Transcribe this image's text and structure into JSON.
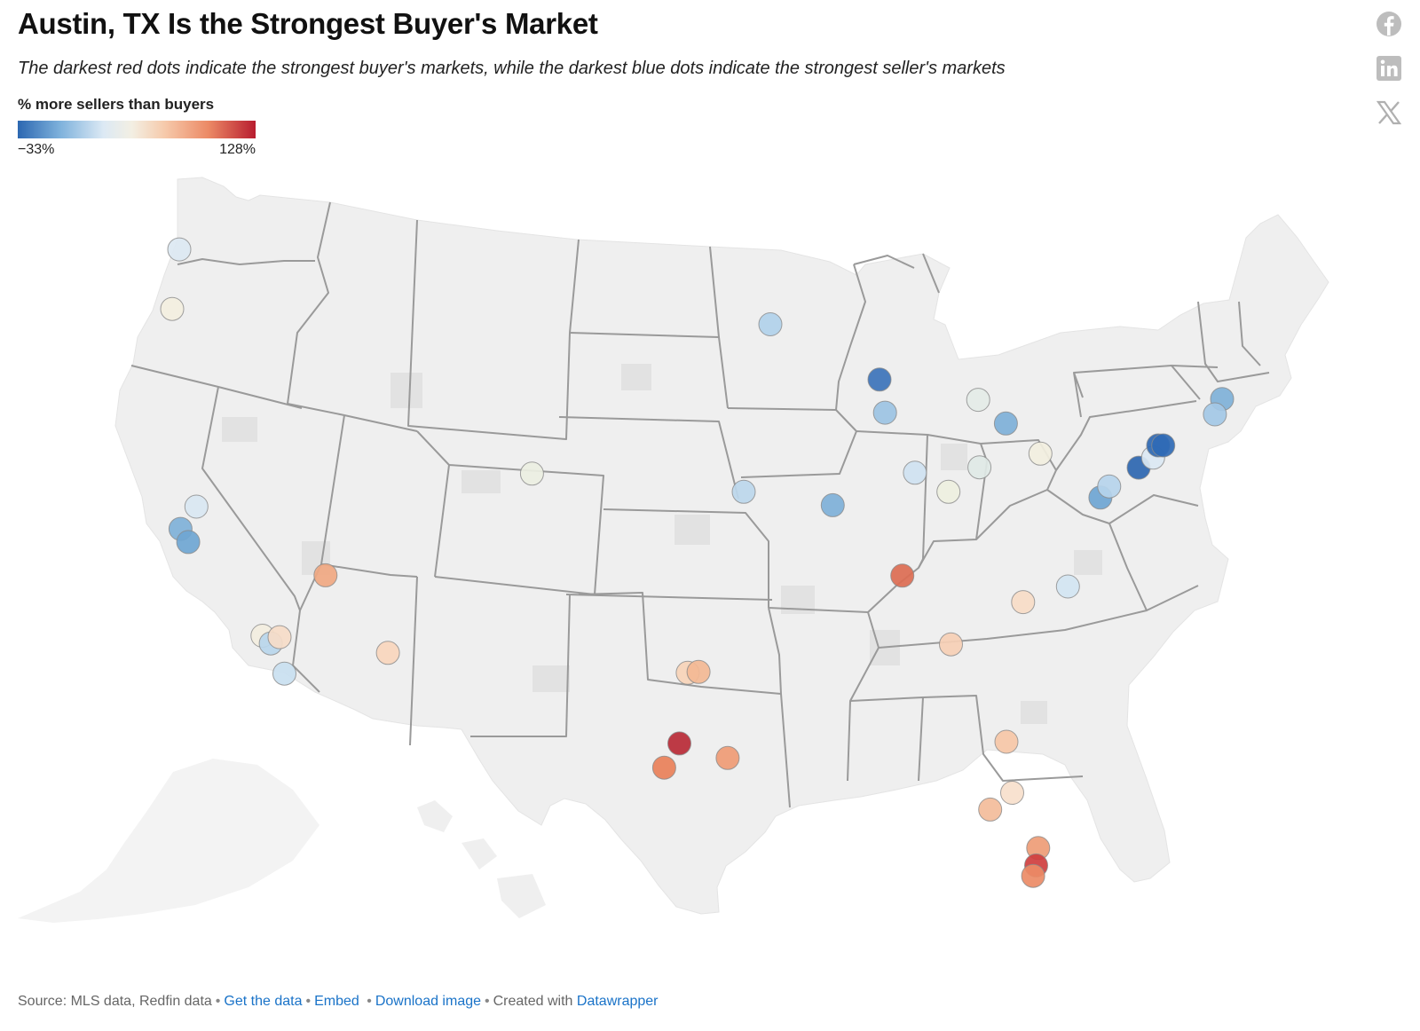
{
  "header": {
    "title": "Austin, TX Is the Strongest Buyer's Market",
    "subtitle": "The darkest red dots indicate the strongest buyer's markets, while the darkest blue dots indicate the strongest seller's markets"
  },
  "legend": {
    "title": "% more sellers than buyers",
    "min_label": "−33%",
    "max_label": "128%",
    "colors": [
      "#2c67b1",
      "#7fb2dc",
      "#dce9f4",
      "#f3efe3",
      "#f6c9aa",
      "#ec8a66",
      "#b81d2f"
    ]
  },
  "share": [
    {
      "name": "facebook-icon",
      "icon": "facebook"
    },
    {
      "name": "linkedin-icon",
      "icon": "linkedin"
    },
    {
      "name": "x-icon",
      "icon": "x"
    }
  ],
  "footer": {
    "source": "Source: MLS data, Redfin data",
    "get_data": "Get the data",
    "embed": "Embed",
    "download": "Download image",
    "created_with": "Created with",
    "datawrapper": "Datawrapper"
  },
  "map_data": {
    "region": "Contiguous United States",
    "color_scale": {
      "min": -33,
      "max": 128
    },
    "markers": [
      {
        "lon": -122.33,
        "lat": 47.61,
        "color": "#dce8f2"
      },
      {
        "lon": -122.68,
        "lat": 45.52,
        "color": "#f3efe0"
      },
      {
        "lon": -122.27,
        "lat": 37.8,
        "color": "#7fb1d8"
      },
      {
        "lon": -121.89,
        "lat": 37.34,
        "color": "#6fa6d2"
      },
      {
        "lon": -121.49,
        "lat": 38.58,
        "color": "#d9e7f2"
      },
      {
        "lon": -115.14,
        "lat": 36.17,
        "color": "#f0a882"
      },
      {
        "lon": -118.24,
        "lat": 34.05,
        "color": "#f3eedf"
      },
      {
        "lon": -117.83,
        "lat": 33.78,
        "color": "#b9d6ec"
      },
      {
        "lon": -117.4,
        "lat": 34.0,
        "color": "#f6dcc8"
      },
      {
        "lon": -117.16,
        "lat": 32.72,
        "color": "#c9dff0"
      },
      {
        "lon": -112.07,
        "lat": 33.45,
        "color": "#f8d6bd"
      },
      {
        "lon": -104.99,
        "lat": 39.74,
        "color": "#ecefe2"
      },
      {
        "lon": -93.27,
        "lat": 44.98,
        "color": "#b1d1ea"
      },
      {
        "lon": -94.58,
        "lat": 39.1,
        "color": "#bcd7ec"
      },
      {
        "lon": -90.2,
        "lat": 38.63,
        "color": "#7eb0d8"
      },
      {
        "lon": -87.9,
        "lat": 43.04,
        "color": "#3c73ba"
      },
      {
        "lon": -87.63,
        "lat": 41.88,
        "color": "#9cc3e3"
      },
      {
        "lon": -86.16,
        "lat": 39.77,
        "color": "#cfe2f1"
      },
      {
        "lon": -83.05,
        "lat": 42.33,
        "color": "#e4ece7"
      },
      {
        "lon": -82.99,
        "lat": 39.96,
        "color": "#dfe9e6"
      },
      {
        "lon": -84.51,
        "lat": 39.1,
        "color": "#eef0e0"
      },
      {
        "lon": -81.69,
        "lat": 41.5,
        "color": "#7eb0d8"
      },
      {
        "lon": -79.99,
        "lat": 40.44,
        "color": "#f2efe0"
      },
      {
        "lon": -86.78,
        "lat": 36.16,
        "color": "#dc6c53"
      },
      {
        "lon": -80.84,
        "lat": 35.23,
        "color": "#f7dcc7"
      },
      {
        "lon": -78.64,
        "lat": 35.78,
        "color": "#d3e5f2"
      },
      {
        "lon": -84.39,
        "lat": 33.75,
        "color": "#f6cfb5"
      },
      {
        "lon": -81.66,
        "lat": 30.33,
        "color": "#f6c7a7"
      },
      {
        "lon": -81.38,
        "lat": 28.54,
        "color": "#f7e0cc"
      },
      {
        "lon": -82.46,
        "lat": 27.95,
        "color": "#f3bc9a"
      },
      {
        "lon": -80.1,
        "lat": 26.6,
        "color": "#ee9c76"
      },
      {
        "lon": -80.2,
        "lat": 25.99,
        "color": "#cf3e3e"
      },
      {
        "lon": -80.35,
        "lat": 25.62,
        "color": "#ec8b66"
      },
      {
        "lon": -97.33,
        "lat": 32.75,
        "color": "#f7d4b9"
      },
      {
        "lon": -96.8,
        "lat": 32.78,
        "color": "#f3b994"
      },
      {
        "lon": -97.74,
        "lat": 30.27,
        "color": "#b82a36"
      },
      {
        "lon": -98.49,
        "lat": 29.42,
        "color": "#e98059"
      },
      {
        "lon": -95.37,
        "lat": 29.76,
        "color": "#ef9b75"
      },
      {
        "lon": -77.04,
        "lat": 38.9,
        "color": "#6ea5d3"
      },
      {
        "lon": -76.61,
        "lat": 39.29,
        "color": "#b6d4ec"
      },
      {
        "lon": -75.16,
        "lat": 39.95,
        "color": "#2d66b0"
      },
      {
        "lon": -74.45,
        "lat": 40.3,
        "color": "#dbe8f3"
      },
      {
        "lon": -74.2,
        "lat": 40.73,
        "color": "#2e68b3"
      },
      {
        "lon": -73.95,
        "lat": 40.73,
        "color": "#2f6ab5"
      },
      {
        "lon": -71.06,
        "lat": 42.36,
        "color": "#7fb1d8"
      },
      {
        "lon": -71.41,
        "lat": 41.82,
        "color": "#a3c8e6"
      }
    ]
  }
}
